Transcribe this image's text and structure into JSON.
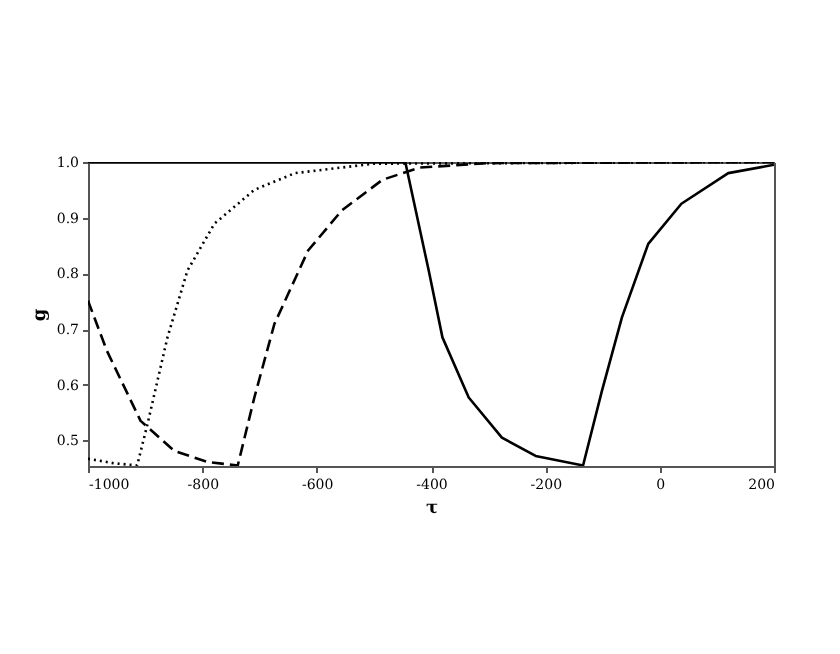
{
  "chart_data": {
    "type": "line",
    "xlabel": "τ",
    "ylabel": "g",
    "xlim": [
      -1000,
      200
    ],
    "xticks": [
      -1000,
      -800,
      -600,
      -400,
      -200,
      0,
      200
    ],
    "ylim": [
      0.454,
      1.0
    ],
    "yticks": [
      0.5,
      0.6,
      0.7,
      0.8,
      0.9,
      {
        "value": 1.0,
        "label": "1.0"
      }
    ],
    "grid": false,
    "series": [
      {
        "color": "#000000",
        "line_style": "solid",
        "x": [
          -1000,
          -445,
          -404,
          -380,
          -334,
          -276,
          -217,
          -134,
          -101,
          -66,
          -20,
          38,
          120,
          200
        ],
        "values": [
          1.0,
          1.0,
          0.805,
          0.685,
          0.577,
          0.505,
          0.472,
          0.455,
          0.589,
          0.721,
          0.853,
          0.925,
          0.98,
          0.995
        ]
      },
      {
        "color": "#000000",
        "line_style": "dashed",
        "x": [
          -1000,
          -967,
          -908,
          -849,
          -790,
          -738,
          -709,
          -674,
          -615,
          -556,
          -485,
          -420,
          -300,
          200
        ],
        "values": [
          0.751,
          0.661,
          0.535,
          0.481,
          0.461,
          0.455,
          0.577,
          0.709,
          0.841,
          0.913,
          0.968,
          0.99,
          0.998,
          1.0
        ]
      },
      {
        "color": "#000000",
        "line_style": "dotted",
        "x": [
          -1000,
          -955,
          -914,
          -896,
          -861,
          -826,
          -779,
          -709,
          -638,
          -500,
          200
        ],
        "values": [
          0.467,
          0.459,
          0.455,
          0.529,
          0.685,
          0.805,
          0.889,
          0.95,
          0.98,
          0.997,
          1.0
        ]
      }
    ]
  }
}
